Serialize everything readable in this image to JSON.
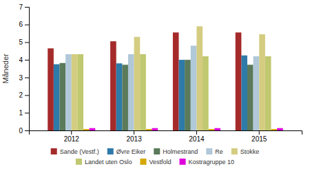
{
  "chart_data": {
    "type": "bar",
    "categories": [
      "2012",
      "2013",
      "2014",
      "2015"
    ],
    "series": [
      {
        "name": "Sande (Vestf.)",
        "color": "#a52a2a",
        "values": [
          4.65,
          5.05,
          5.55,
          5.55
        ]
      },
      {
        "name": "Øvre Eiker",
        "color": "#2e7aa8",
        "values": [
          3.75,
          3.8,
          4.0,
          4.25
        ]
      },
      {
        "name": "Holmestrand",
        "color": "#5a7a5a",
        "values": [
          3.82,
          3.72,
          4.0,
          3.72
        ]
      },
      {
        "name": "Re",
        "color": "#b0c8d8",
        "values": [
          4.32,
          4.32,
          4.8,
          4.2
        ]
      },
      {
        "name": "Stokke",
        "color": "#d4cc80",
        "values": [
          4.32,
          5.3,
          5.9,
          5.45
        ]
      },
      {
        "name": "Landet uten Oslo",
        "color": "#c0c870",
        "values": [
          4.32,
          4.32,
          4.2,
          4.2
        ]
      },
      {
        "name": "Vestfold",
        "color": "#d4a800",
        "values": [
          0.08,
          0.08,
          0.08,
          0.08
        ]
      },
      {
        "name": "Kostragruppe 10",
        "color": "#dd00dd",
        "values": [
          0.13,
          0.13,
          0.13,
          0.13
        ]
      }
    ],
    "ylabel": "Måneder",
    "ylim": [
      0,
      7
    ],
    "yticks": [
      0,
      1,
      2,
      3,
      4,
      5,
      6,
      7
    ],
    "grid": false,
    "legend": "bottom"
  }
}
